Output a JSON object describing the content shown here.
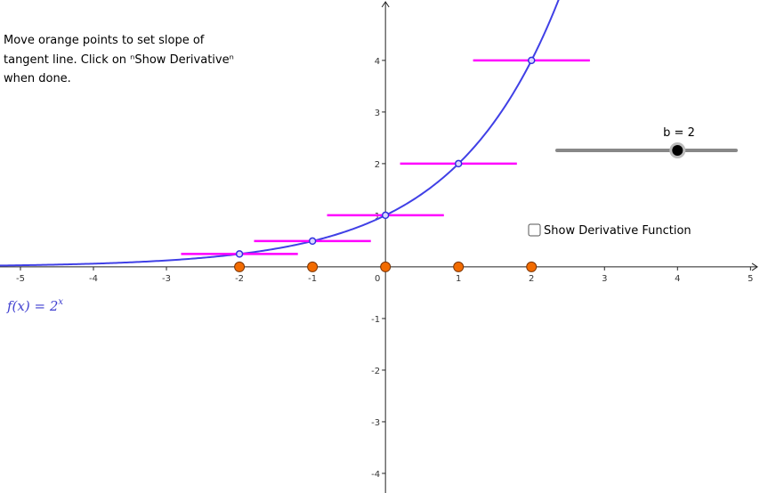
{
  "instructions": [
    "Move orange points to set slope of",
    "tangent line.  Click on ⁿShow Derivativeⁿ",
    "when done."
  ],
  "slider": {
    "label": "b = 2",
    "value": 2
  },
  "checkbox": {
    "label": "Show Derivative Function",
    "checked": false
  },
  "function_label": {
    "lhs": "f(x) =",
    "base": "2",
    "exponent": "x"
  },
  "axes": {
    "xlim": [
      -5.28,
      5.13
    ],
    "ylim": [
      -4.38,
      5.17
    ],
    "xticks": [
      -5,
      -4,
      -3,
      -2,
      -1,
      0,
      1,
      2,
      3,
      4,
      5
    ],
    "yticks": [
      -4,
      -3,
      -2,
      -1,
      1,
      2,
      3,
      4
    ]
  },
  "points": {
    "x": [
      -2,
      -1,
      0,
      1,
      2
    ],
    "y": [
      0.25,
      0.5,
      1,
      2,
      4
    ],
    "slopes": [
      0,
      0,
      0,
      0,
      0
    ]
  }
}
